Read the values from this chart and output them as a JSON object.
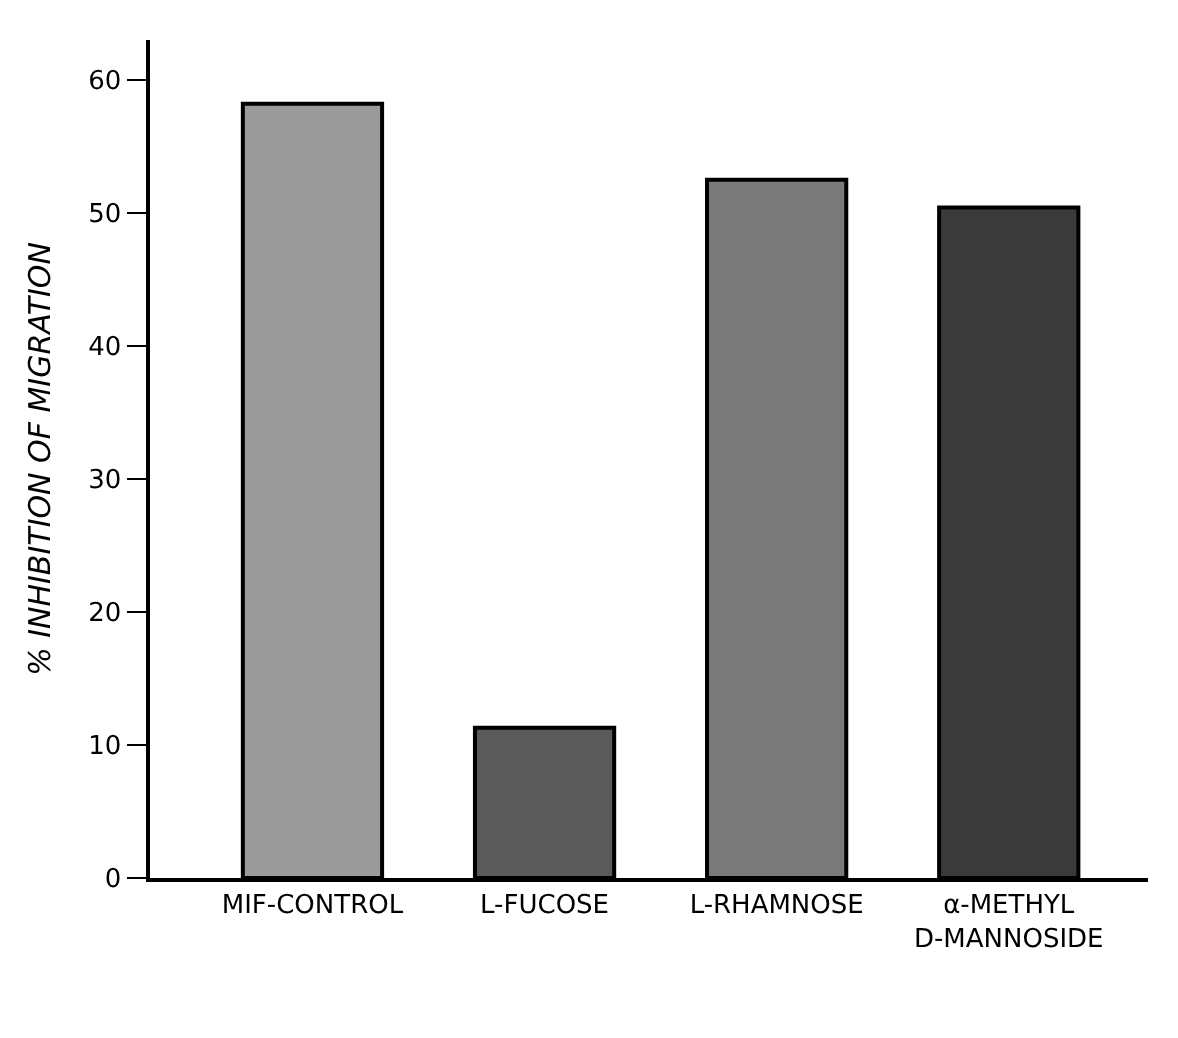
{
  "chart_data": {
    "type": "bar",
    "ylabel": "% INHIBITION OF MIGRATION",
    "categories": [
      "MIF-CONTROL",
      "L-FUCOSE",
      "L-RHAMNOSE",
      "α-METHYL\nD-MANNOSIDE"
    ],
    "values": [
      58.2,
      11.3,
      52.5,
      50.4
    ],
    "colors": [
      "#9a9a9a",
      "#5a5a5a",
      "#7a7a7a",
      "#3a3a3a"
    ],
    "ylim": [
      0,
      63
    ],
    "yticks": [
      0,
      10,
      20,
      30,
      40,
      50,
      60
    ]
  }
}
